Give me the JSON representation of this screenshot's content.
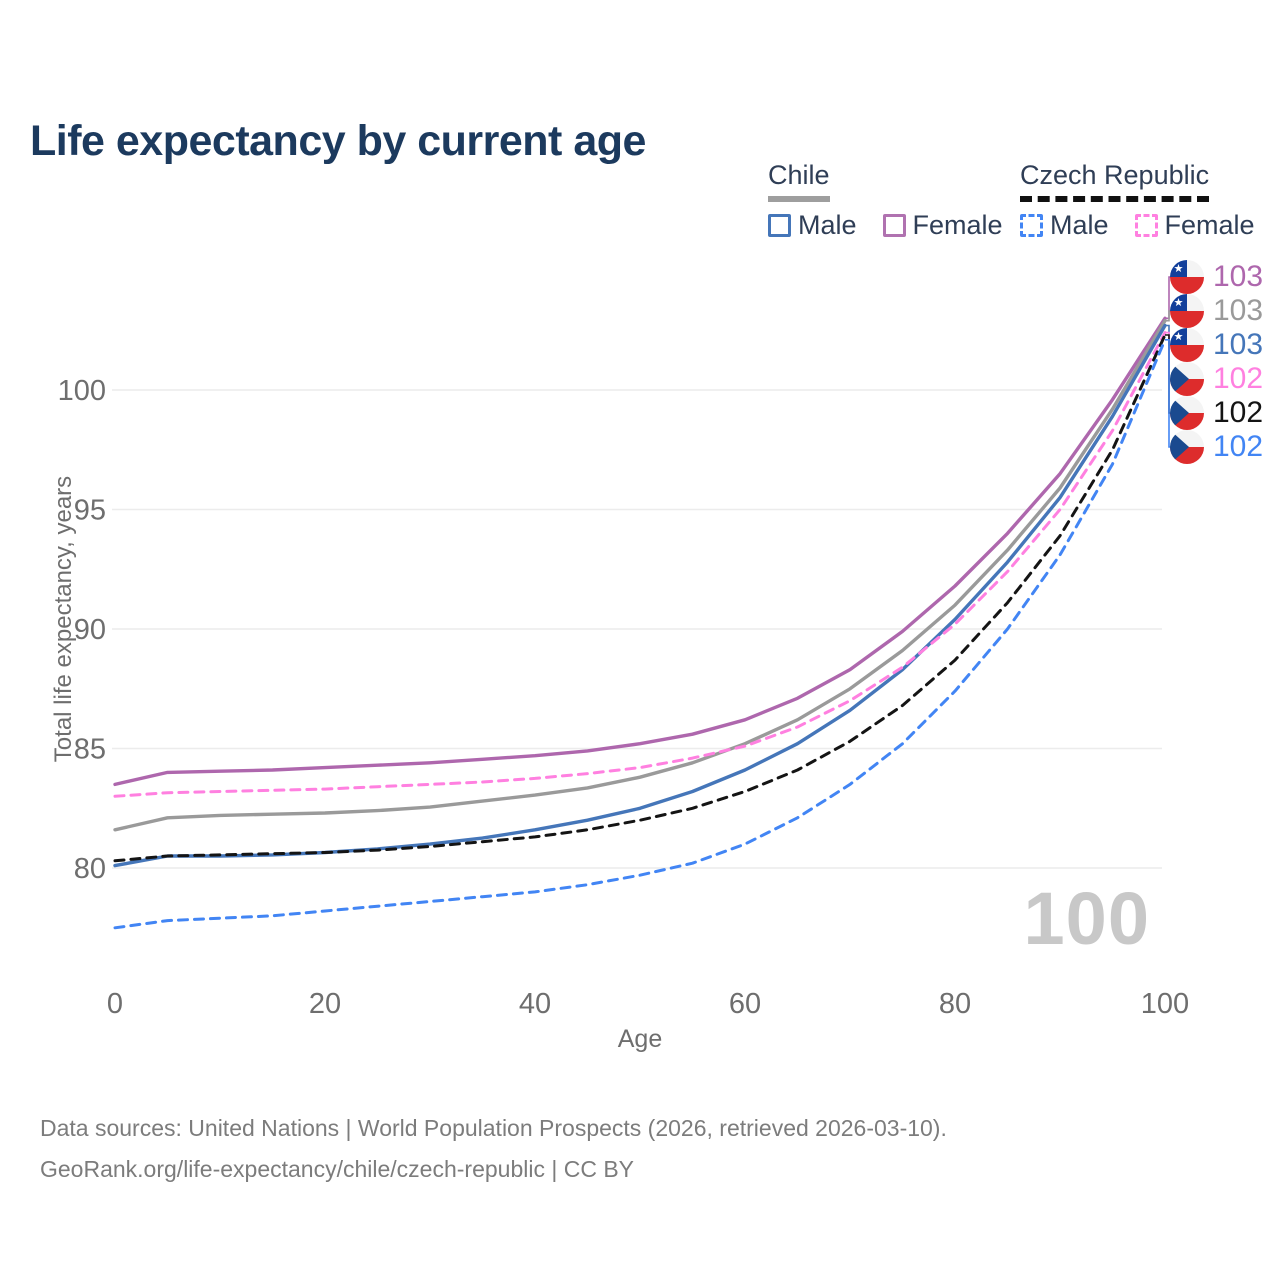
{
  "title": "Life expectancy by current age",
  "legend": {
    "groups": [
      {
        "label": "Chile",
        "line_style": "solid",
        "underline_color": "#9e9e9e",
        "items": [
          {
            "label": "Male",
            "color": "#4576b9",
            "dashed": false
          },
          {
            "label": "Female",
            "color": "#b072b0",
            "dashed": false
          }
        ]
      },
      {
        "label": "Czech Republic",
        "line_style": "dashed",
        "underline_color": "#111111",
        "items": [
          {
            "label": "Male",
            "color": "#4285f4",
            "dashed": true
          },
          {
            "label": "Female",
            "color": "#ff80e0",
            "dashed": true
          }
        ]
      }
    ]
  },
  "chart_data": {
    "type": "line",
    "title": "Life expectancy by current age",
    "xlabel": "Age",
    "ylabel": "Total life expectancy, years",
    "x": [
      0,
      5,
      10,
      15,
      20,
      25,
      30,
      35,
      40,
      45,
      50,
      55,
      60,
      65,
      70,
      75,
      80,
      85,
      90,
      95,
      100
    ],
    "xticks": [
      0,
      20,
      40,
      60,
      80,
      100
    ],
    "yticks": [
      80,
      85,
      90,
      95,
      100
    ],
    "xlim": [
      0,
      100
    ],
    "ylim": [
      76,
      104
    ],
    "grid": "horizontal",
    "legend_position": "top-right",
    "watermark": "100",
    "series": [
      {
        "name": "Chile Female",
        "country": "Chile",
        "sex": "Female",
        "color": "#ae67ad",
        "dash": "solid",
        "end_label": "103",
        "values": [
          83.5,
          84.0,
          84.05,
          84.1,
          84.2,
          84.3,
          84.4,
          84.55,
          84.7,
          84.9,
          85.2,
          85.6,
          86.2,
          87.1,
          88.3,
          89.9,
          91.8,
          94.0,
          96.5,
          99.6,
          103.0
        ]
      },
      {
        "name": "Chile Total",
        "country": "Chile",
        "sex": "Both",
        "color": "#9a9a9a",
        "dash": "solid",
        "end_label": "103",
        "values": [
          81.6,
          82.1,
          82.2,
          82.25,
          82.3,
          82.4,
          82.55,
          82.8,
          83.05,
          83.35,
          83.8,
          84.4,
          85.2,
          86.2,
          87.5,
          89.1,
          91.0,
          93.3,
          95.9,
          99.2,
          102.9
        ]
      },
      {
        "name": "Chile Male",
        "country": "Chile",
        "sex": "Male",
        "color": "#4576b9",
        "dash": "solid",
        "end_label": "103",
        "values": [
          80.1,
          80.5,
          80.5,
          80.55,
          80.65,
          80.8,
          81.0,
          81.25,
          81.6,
          82.0,
          82.5,
          83.2,
          84.1,
          85.2,
          86.6,
          88.3,
          90.4,
          92.8,
          95.5,
          98.9,
          102.7
        ]
      },
      {
        "name": "Czech Republic Female",
        "country": "Czech Republic",
        "sex": "Female",
        "color": "#ff80e0",
        "dash": "dashed",
        "end_label": "102",
        "values": [
          83.0,
          83.15,
          83.2,
          83.25,
          83.3,
          83.4,
          83.5,
          83.6,
          83.75,
          83.95,
          84.2,
          84.6,
          85.1,
          85.9,
          87.0,
          88.4,
          90.2,
          92.4,
          95.0,
          98.3,
          102.4
        ]
      },
      {
        "name": "Czech Republic Total",
        "country": "Czech Republic",
        "sex": "Both",
        "color": "#141414",
        "dash": "dashed",
        "end_label": "102",
        "values": [
          80.3,
          80.5,
          80.55,
          80.6,
          80.65,
          80.75,
          80.9,
          81.1,
          81.3,
          81.6,
          82.0,
          82.5,
          83.2,
          84.1,
          85.3,
          86.8,
          88.7,
          91.1,
          93.9,
          97.5,
          102.3
        ]
      },
      {
        "name": "Czech Republic Male",
        "country": "Czech Republic",
        "sex": "Male",
        "color": "#4285f4",
        "dash": "dashed",
        "end_label": "102",
        "values": [
          77.5,
          77.8,
          77.9,
          78.0,
          78.2,
          78.4,
          78.6,
          78.8,
          79.0,
          79.3,
          79.7,
          80.2,
          81.0,
          82.1,
          83.5,
          85.2,
          87.4,
          90.0,
          93.1,
          96.9,
          102.1
        ]
      }
    ]
  },
  "end_labels": [
    {
      "value": "103",
      "color": "#ae67ad",
      "flag": "chile-flag-icon"
    },
    {
      "value": "103",
      "color": "#9a9a9a",
      "flag": "chile-flag-icon"
    },
    {
      "value": "103",
      "color": "#4576b9",
      "flag": "chile-flag-icon"
    },
    {
      "value": "102",
      "color": "#ff80e0",
      "flag": "czech-flag-icon"
    },
    {
      "value": "102",
      "color": "#141414",
      "flag": "czech-flag-icon"
    },
    {
      "value": "102",
      "color": "#4285f4",
      "flag": "czech-flag-icon"
    }
  ],
  "flag_colors": {
    "chile": {
      "blue": "#123f9b",
      "red": "#dd2c2c",
      "white": "#f4f4f4"
    },
    "czech": {
      "blue": "#1b4a8f",
      "red": "#dd2c2c",
      "white": "#f4f4f4"
    }
  },
  "watermark": "100",
  "axes": {
    "y_title": "Total life expectancy, years",
    "x_title": "Age"
  },
  "footer": {
    "line1": "Data sources: United Nations | World Population Prospects (2026, retrieved 2026-03-10).",
    "line2": "GeoRank.org/life-expectancy/chile/czech-republic | CC BY"
  }
}
